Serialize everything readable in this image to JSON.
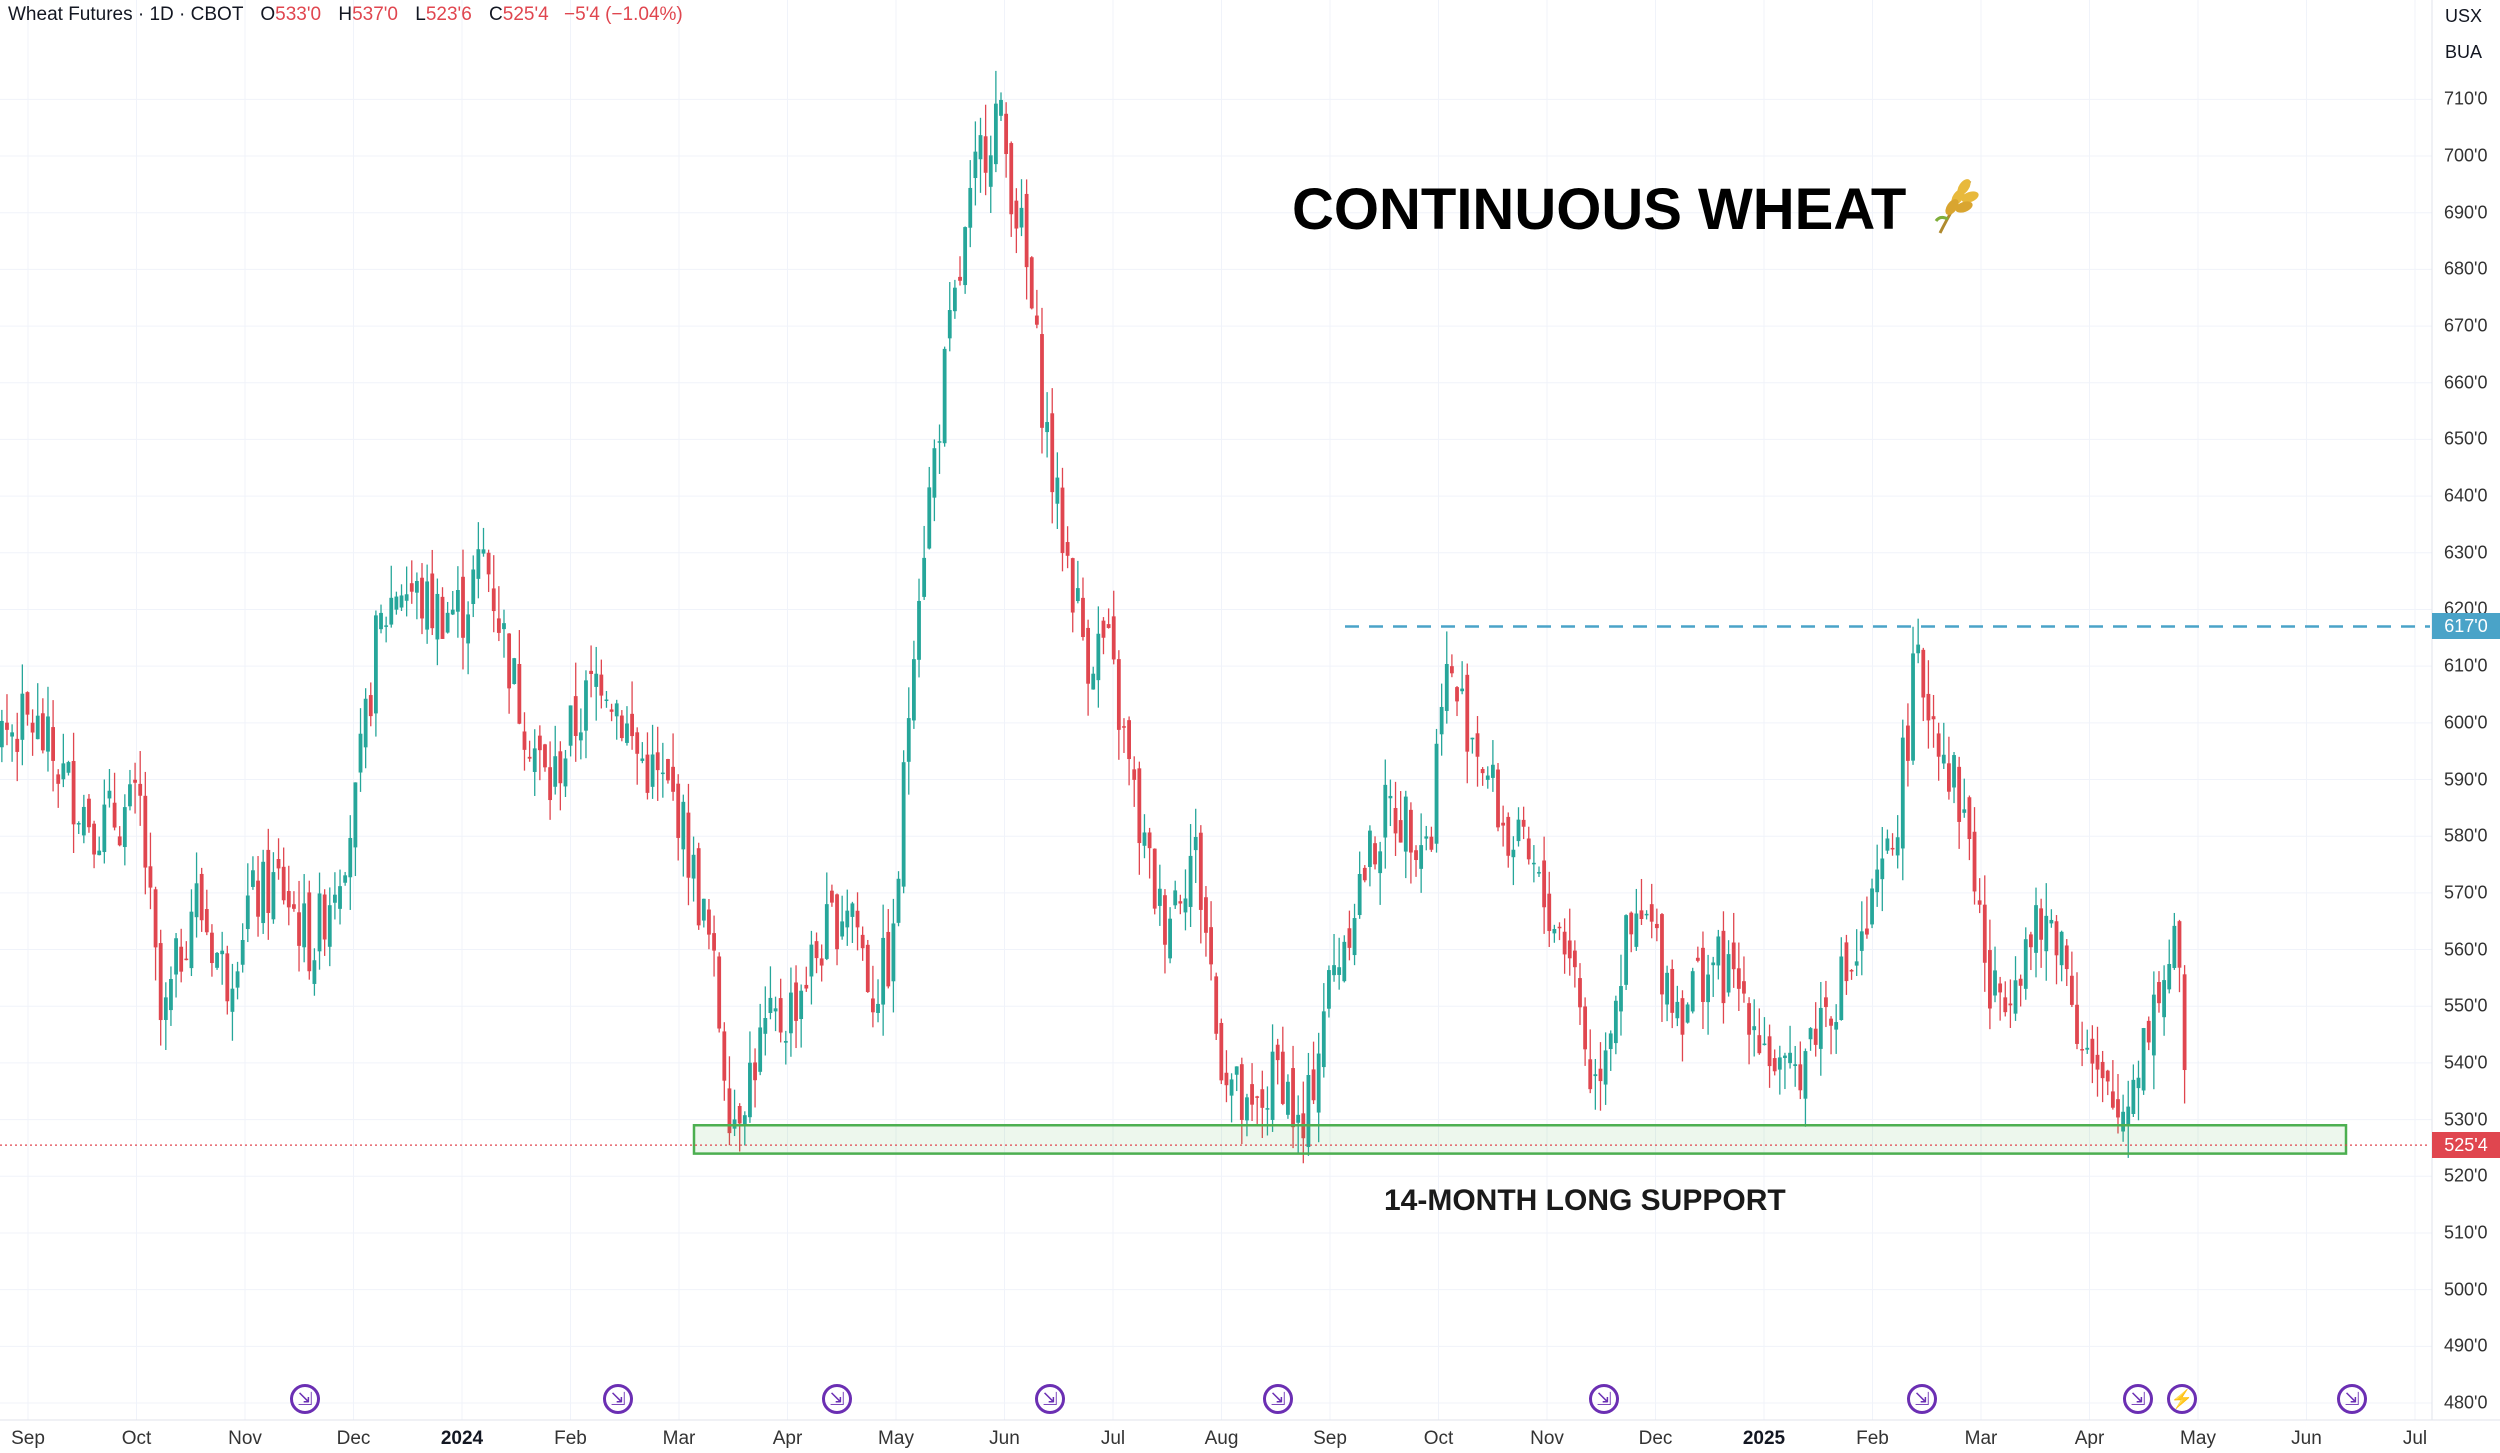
{
  "header": {
    "instrument": "Wheat Futures · 1D · CBOT",
    "open_label": "O",
    "open": "533'0",
    "high_label": "H",
    "high": "537'0",
    "low_label": "L",
    "low": "523'6",
    "close_label": "C",
    "close": "525'4",
    "change": "−5'4 (−1.04%)"
  },
  "symbols": {
    "currency": "USX",
    "unit": "BUA"
  },
  "annotations": {
    "title": "CONTINUOUS WHEAT",
    "title_icon": "wheat-icon",
    "support_label": "14-MONTH LONG SUPPORT"
  },
  "price_tags": {
    "resistance": "617'0",
    "last": "525'4"
  },
  "colors": {
    "up": "#26a69a",
    "down": "#e0464f",
    "resistance": "#4aa3c8",
    "support": "#4caf50",
    "event": "#6b2fb3"
  },
  "chart_data": {
    "type": "candlestick",
    "title": "CONTINUOUS WHEAT",
    "y_ticks": [
      "710'0",
      "700'0",
      "690'0",
      "680'0",
      "670'0",
      "660'0",
      "650'0",
      "640'0",
      "630'0",
      "620'0",
      "610'0",
      "600'0",
      "590'0",
      "580'0",
      "570'0",
      "560'0",
      "550'0",
      "540'0",
      "530'0",
      "520'0",
      "510'0",
      "500'0",
      "490'0",
      "480'0"
    ],
    "ylim": [
      477,
      724
    ],
    "x_ticks": [
      {
        "label": "Sep",
        "bold": false
      },
      {
        "label": "Oct",
        "bold": false
      },
      {
        "label": "Nov",
        "bold": false
      },
      {
        "label": "Dec",
        "bold": false
      },
      {
        "label": "2024",
        "bold": true
      },
      {
        "label": "Feb",
        "bold": false
      },
      {
        "label": "Mar",
        "bold": false
      },
      {
        "label": "Apr",
        "bold": false
      },
      {
        "label": "May",
        "bold": false
      },
      {
        "label": "Jun",
        "bold": false
      },
      {
        "label": "Jul",
        "bold": false
      },
      {
        "label": "Aug",
        "bold": false
      },
      {
        "label": "Sep",
        "bold": false
      },
      {
        "label": "Oct",
        "bold": false
      },
      {
        "label": "Nov",
        "bold": false
      },
      {
        "label": "Dec",
        "bold": false
      },
      {
        "label": "2025",
        "bold": true
      },
      {
        "label": "Feb",
        "bold": false
      },
      {
        "label": "Mar",
        "bold": false
      },
      {
        "label": "Apr",
        "bold": false
      },
      {
        "label": "May",
        "bold": false
      },
      {
        "label": "Jun",
        "bold": false
      },
      {
        "label": "Jul",
        "bold": false
      }
    ],
    "start_month": "2023-08",
    "end_month": "2025-07",
    "series": [
      {
        "month": "Aug 2023",
        "points": [
          [
            0,
            605
          ],
          [
            0.2,
            615
          ],
          [
            0.6,
            598
          ],
          [
            1.0,
            600
          ]
        ]
      },
      {
        "month": "Sep 2023",
        "points": [
          [
            0,
            600
          ],
          [
            0.3,
            590
          ],
          [
            0.6,
            582
          ],
          [
            1.0,
            585
          ]
        ]
      },
      {
        "month": "Oct 2023",
        "points": [
          [
            0,
            585
          ],
          [
            0.2,
            545
          ],
          [
            0.5,
            570
          ],
          [
            0.8,
            555
          ],
          [
            1.0,
            568
          ]
        ]
      },
      {
        "month": "Nov 2023",
        "points": [
          [
            0,
            568
          ],
          [
            0.3,
            572
          ],
          [
            0.6,
            560
          ],
          [
            1.0,
            585
          ]
        ]
      },
      {
        "month": "Dec 2023",
        "points": [
          [
            0,
            585
          ],
          [
            0.2,
            615
          ],
          [
            0.4,
            625
          ],
          [
            0.7,
            620
          ],
          [
            1.0,
            620
          ]
        ]
      },
      {
        "month": "Jan 2024",
        "points": [
          [
            0,
            620
          ],
          [
            0.2,
            630
          ],
          [
            0.5,
            605
          ],
          [
            0.8,
            588
          ],
          [
            1.0,
            598
          ]
        ]
      },
      {
        "month": "Feb 2024",
        "points": [
          [
            0,
            598
          ],
          [
            0.3,
            610
          ],
          [
            0.6,
            595
          ],
          [
            1.0,
            585
          ]
        ]
      },
      {
        "month": "Mar 2024",
        "points": [
          [
            0,
            585
          ],
          [
            0.3,
            560
          ],
          [
            0.5,
            530
          ],
          [
            0.8,
            545
          ],
          [
            1.0,
            548
          ]
        ]
      },
      {
        "month": "Apr 2024",
        "points": [
          [
            0,
            548
          ],
          [
            0.3,
            560
          ],
          [
            0.6,
            570
          ],
          [
            0.8,
            552
          ],
          [
            1.0,
            560
          ]
        ]
      },
      {
        "month": "May 2024",
        "points": [
          [
            0,
            560
          ],
          [
            0.2,
            620
          ],
          [
            0.5,
            665
          ],
          [
            0.8,
            700
          ],
          [
            1.0,
            710
          ]
        ]
      },
      {
        "month": "Jun 2024",
        "points": [
          [
            0,
            705
          ],
          [
            0.2,
            685
          ],
          [
            0.5,
            640
          ],
          [
            0.8,
            612
          ],
          [
            1.0,
            615
          ]
        ]
      },
      {
        "month": "Jul 2024",
        "points": [
          [
            0,
            612
          ],
          [
            0.3,
            580
          ],
          [
            0.5,
            565
          ],
          [
            0.8,
            578
          ],
          [
            1.0,
            550
          ]
        ]
      },
      {
        "month": "Aug 2024",
        "points": [
          [
            0,
            545
          ],
          [
            0.3,
            528
          ],
          [
            0.6,
            540
          ],
          [
            0.8,
            525
          ],
          [
            1.0,
            550
          ]
        ]
      },
      {
        "month": "Sep 2024",
        "points": [
          [
            0,
            550
          ],
          [
            0.3,
            570
          ],
          [
            0.6,
            585
          ],
          [
            1.0,
            580
          ]
        ]
      },
      {
        "month": "Oct 2024",
        "points": [
          [
            0,
            580
          ],
          [
            0.1,
            610
          ],
          [
            0.4,
            598
          ],
          [
            0.7,
            580
          ],
          [
            1.0,
            572
          ]
        ]
      },
      {
        "month": "Nov 2024",
        "points": [
          [
            0,
            570
          ],
          [
            0.3,
            560
          ],
          [
            0.5,
            535
          ],
          [
            0.8,
            560
          ],
          [
            1.0,
            565
          ]
        ]
      },
      {
        "month": "Dec 2024",
        "points": [
          [
            0,
            565
          ],
          [
            0.3,
            550
          ],
          [
            0.6,
            558
          ],
          [
            1.0,
            550
          ]
        ]
      },
      {
        "month": "Jan 2025",
        "points": [
          [
            0,
            548
          ],
          [
            0.3,
            535
          ],
          [
            0.6,
            548
          ],
          [
            1.0,
            560
          ]
        ]
      },
      {
        "month": "Feb 2025",
        "points": [
          [
            0,
            560
          ],
          [
            0.3,
            580
          ],
          [
            0.5,
            610
          ],
          [
            0.7,
            600
          ],
          [
            1.0,
            580
          ]
        ]
      },
      {
        "month": "Mar 2025",
        "points": [
          [
            0,
            580
          ],
          [
            0.2,
            550
          ],
          [
            0.5,
            560
          ],
          [
            0.8,
            565
          ],
          [
            1.0,
            550
          ]
        ]
      },
      {
        "month": "Apr 2025",
        "points": [
          [
            0,
            548
          ],
          [
            0.2,
            535
          ],
          [
            0.4,
            530
          ],
          [
            0.7,
            550
          ],
          [
            0.9,
            560
          ],
          [
            1.0,
            545
          ]
        ]
      },
      {
        "month": "May 2025",
        "points": [
          [
            0,
            540
          ],
          [
            0.02,
            525
          ]
        ]
      }
    ],
    "resistance_level": 617,
    "support_zone": [
      524,
      529
    ],
    "last_price": 525.5
  },
  "events": [
    {
      "icon": "split-arrow-icon"
    },
    {
      "icon": "split-arrow-icon"
    },
    {
      "icon": "split-arrow-icon"
    },
    {
      "icon": "split-arrow-icon"
    },
    {
      "icon": "split-arrow-icon"
    },
    {
      "icon": "split-arrow-icon"
    },
    {
      "icon": "split-arrow-icon"
    },
    {
      "icon": "split-arrow-icon"
    },
    {
      "icon": "flash-icon"
    },
    {
      "icon": "split-arrow-icon"
    }
  ]
}
